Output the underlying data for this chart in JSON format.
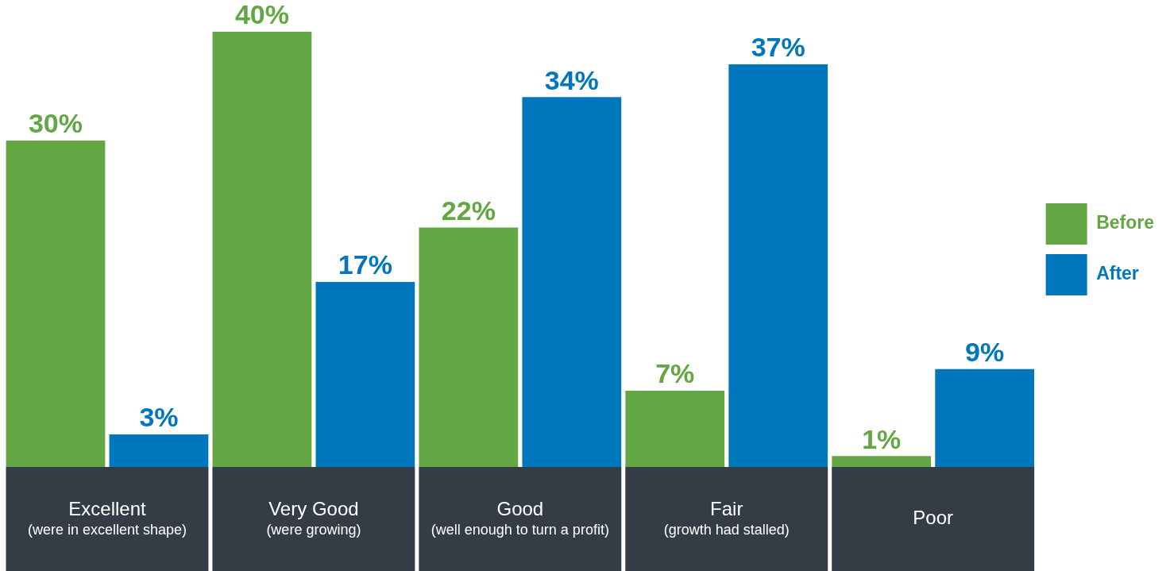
{
  "chart_data": {
    "type": "bar",
    "categories": [
      "Excellent\n(were in excellent shape)",
      "Very Good\n(were growing)",
      "Good\n(well enough to turn a profit)",
      "Fair\n(growth had stalled)",
      "Poor"
    ],
    "series": [
      {
        "name": "Before",
        "color": "#63a744",
        "values": [
          30,
          40,
          22,
          7,
          1
        ],
        "value_labels": [
          "30%",
          "40%",
          "22%",
          "7%",
          "1%"
        ]
      },
      {
        "name": "After",
        "color": "#0077bd",
        "values": [
          3,
          17,
          34,
          37,
          9
        ],
        "value_labels": [
          "3%",
          "17%",
          "34%",
          "37%",
          "9%"
        ]
      }
    ],
    "legend": "right"
  }
}
